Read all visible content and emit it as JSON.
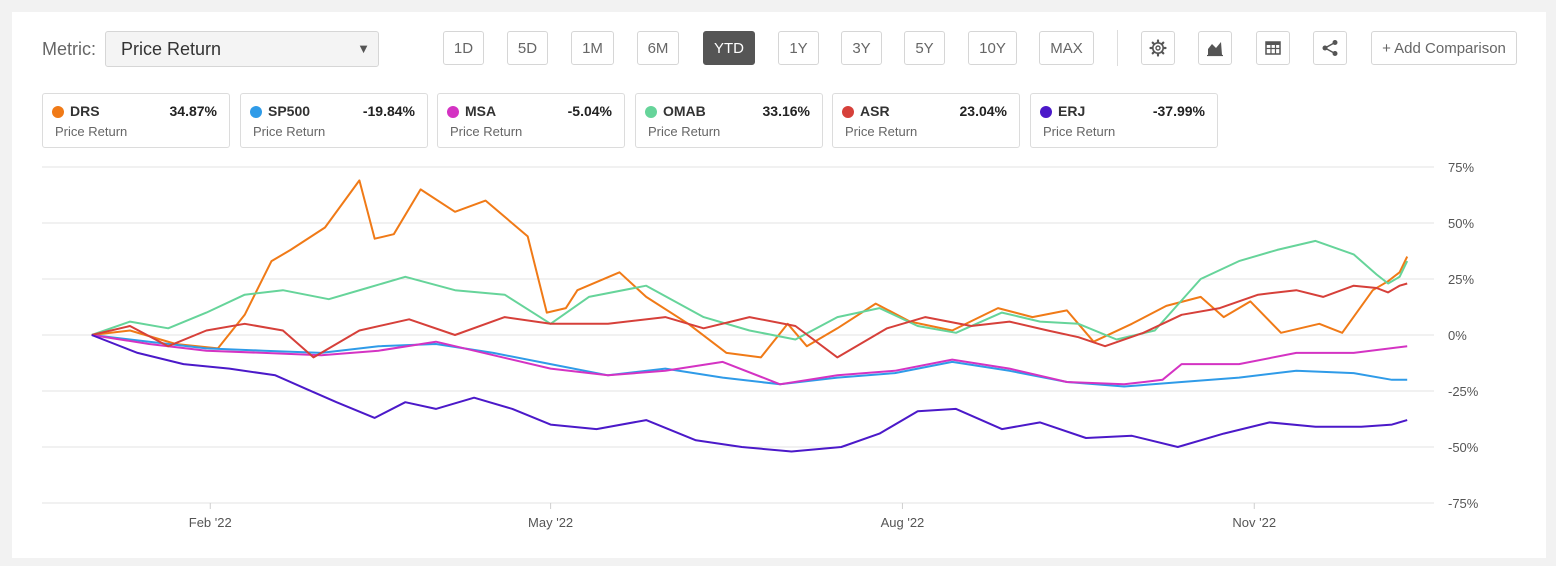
{
  "toolbar": {
    "metric_label": "Metric:",
    "metric_value": "Price Return",
    "ranges": [
      "1D",
      "5D",
      "1M",
      "6M",
      "YTD",
      "1Y",
      "3Y",
      "5Y",
      "10Y",
      "MAX"
    ],
    "active_range": "YTD",
    "add_comparison": "+ Add Comparison"
  },
  "legend": [
    {
      "ticker": "DRS",
      "value": "34.87%",
      "sub": "Price Return",
      "color": "#f07a17"
    },
    {
      "ticker": "SP500",
      "value": "-19.84%",
      "sub": "Price Return",
      "color": "#2f9be8"
    },
    {
      "ticker": "MSA",
      "value": "-5.04%",
      "sub": "Price Return",
      "color": "#d433c3"
    },
    {
      "ticker": "OMAB",
      "value": "33.16%",
      "sub": "Price Return",
      "color": "#66d49a"
    },
    {
      "ticker": "ASR",
      "value": "23.04%",
      "sub": "Price Return",
      "color": "#d6403a"
    },
    {
      "ticker": "ERJ",
      "value": "-37.99%",
      "sub": "Price Return",
      "color": "#4b19c9"
    }
  ],
  "chart_data": {
    "type": "line",
    "ylim": [
      -75,
      75
    ],
    "y_ticks": [
      75,
      50,
      25,
      0,
      -25,
      -50,
      -75
    ],
    "y_tick_labels": [
      "75%",
      "50%",
      "25%",
      "0%",
      "-25%",
      "-50%",
      "-75%"
    ],
    "x_ticks": [
      "Feb '22",
      "May '22",
      "Aug '22",
      "Nov '22"
    ],
    "x_tick_days": [
      31,
      120,
      212,
      304
    ],
    "x_range_days": [
      -13,
      351
    ],
    "grid": true,
    "y_axis_position": "right",
    "series": [
      {
        "name": "DRS",
        "color": "#f07a17",
        "x": [
          0,
          10,
          22,
          33,
          40,
          47,
          52,
          61,
          70,
          74,
          79,
          86,
          95,
          103,
          114,
          119,
          124,
          127,
          138,
          145,
          156,
          166,
          175,
          182,
          187,
          195,
          205,
          214,
          225,
          237,
          246,
          255,
          262,
          272,
          281,
          290,
          296,
          303,
          311,
          321,
          327,
          335,
          339,
          342,
          344
        ],
        "y": [
          0,
          2,
          -4,
          -6,
          9,
          33,
          38,
          48,
          69,
          43,
          45,
          65,
          55,
          60,
          44,
          10,
          12,
          20,
          28,
          17,
          5,
          -8,
          -10,
          5,
          -5,
          3,
          14,
          6,
          2,
          12,
          8,
          11,
          -3,
          5,
          13,
          17,
          8,
          15,
          1,
          5,
          1,
          20,
          24,
          28,
          35
        ]
      },
      {
        "name": "SP500",
        "color": "#2f9be8",
        "x": [
          0,
          15,
          30,
          45,
          60,
          75,
          90,
          105,
          120,
          135,
          150,
          165,
          180,
          195,
          210,
          225,
          240,
          255,
          270,
          285,
          300,
          315,
          330,
          340,
          344
        ],
        "y": [
          0,
          -3,
          -6,
          -7,
          -8,
          -5,
          -4,
          -8,
          -13,
          -18,
          -15,
          -19,
          -22,
          -19,
          -17,
          -12,
          -16,
          -21,
          -23,
          -21,
          -19,
          -16,
          -17,
          -20,
          -20
        ]
      },
      {
        "name": "MSA",
        "color": "#d433c3",
        "x": [
          0,
          15,
          30,
          45,
          60,
          75,
          90,
          105,
          120,
          135,
          150,
          165,
          180,
          195,
          210,
          225,
          240,
          255,
          270,
          280,
          285,
          300,
          315,
          330,
          344
        ],
        "y": [
          0,
          -4,
          -7,
          -8,
          -9,
          -7,
          -3,
          -9,
          -15,
          -18,
          -16,
          -12,
          -22,
          -18,
          -16,
          -11,
          -15,
          -21,
          -22,
          -20,
          -13,
          -13,
          -8,
          -8,
          -5
        ]
      },
      {
        "name": "OMAB",
        "color": "#66d49a",
        "x": [
          0,
          10,
          20,
          30,
          40,
          50,
          62,
          72,
          82,
          95,
          108,
          120,
          130,
          145,
          160,
          172,
          184,
          195,
          206,
          216,
          226,
          238,
          248,
          258,
          268,
          278,
          290,
          300,
          310,
          320,
          330,
          336,
          339,
          342,
          344
        ],
        "y": [
          0,
          6,
          3,
          10,
          18,
          20,
          16,
          21,
          26,
          20,
          18,
          5,
          17,
          22,
          8,
          2,
          -2,
          8,
          12,
          4,
          1,
          10,
          6,
          5,
          -2,
          2,
          25,
          33,
          38,
          42,
          36,
          27,
          23,
          26,
          33
        ]
      },
      {
        "name": "ASR",
        "color": "#d6403a",
        "x": [
          0,
          10,
          20,
          30,
          40,
          50,
          58,
          70,
          83,
          95,
          108,
          120,
          135,
          150,
          160,
          172,
          184,
          195,
          208,
          218,
          230,
          240,
          250,
          258,
          265,
          275,
          285,
          295,
          305,
          315,
          322,
          330,
          336,
          339,
          342,
          344
        ],
        "y": [
          0,
          4,
          -5,
          2,
          5,
          2,
          -10,
          2,
          7,
          0,
          8,
          5,
          5,
          8,
          3,
          8,
          4,
          -10,
          3,
          8,
          4,
          6,
          2,
          -1,
          -5,
          1,
          9,
          12,
          18,
          20,
          17,
          22,
          21,
          19,
          22,
          23
        ]
      },
      {
        "name": "ERJ",
        "color": "#4b19c9",
        "x": [
          0,
          12,
          24,
          36,
          48,
          56,
          64,
          74,
          82,
          90,
          100,
          110,
          120,
          132,
          145,
          158,
          170,
          183,
          196,
          206,
          216,
          226,
          238,
          248,
          260,
          272,
          284,
          296,
          308,
          320,
          332,
          340,
          344
        ],
        "y": [
          0,
          -8,
          -13,
          -15,
          -18,
          -24,
          -30,
          -37,
          -30,
          -33,
          -28,
          -33,
          -40,
          -42,
          -38,
          -47,
          -50,
          -52,
          -50,
          -44,
          -34,
          -33,
          -42,
          -39,
          -46,
          -45,
          -50,
          -44,
          -39,
          -41,
          -41,
          -40,
          -38
        ]
      }
    ]
  }
}
